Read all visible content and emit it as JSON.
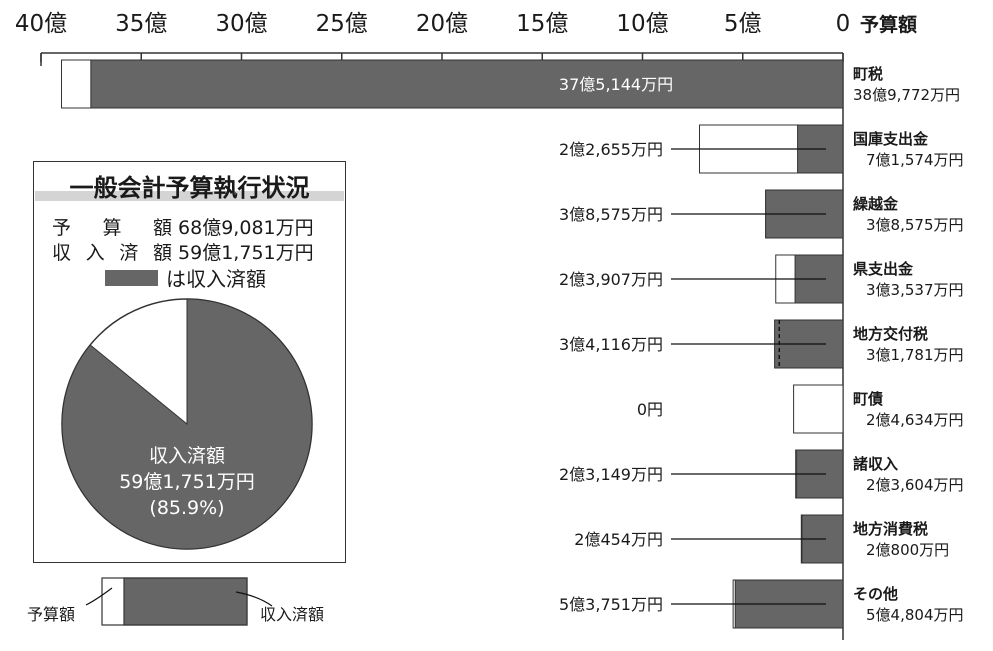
{
  "chart_data": {
    "type": "bar",
    "orientation": "horizontal",
    "x_axis": {
      "min": 0,
      "max": 40,
      "reversed": true,
      "ticks": [
        40,
        35,
        30,
        25,
        20,
        15,
        10,
        5,
        0
      ],
      "tick_labels": [
        "40億",
        "35億",
        "30億",
        "25億",
        "20億",
        "15億",
        "10億",
        "5億",
        "0"
      ],
      "unit_label": "予算額"
    },
    "categories": [
      {
        "name": "町税",
        "budget_label": "38億9,772万円",
        "received_label": "37億5,144万円",
        "budget": 38.9772,
        "received": 37.5144
      },
      {
        "name": "国庫支出金",
        "budget_label": "7億1,574万円",
        "received_label": "2億2,655万円",
        "budget": 7.1574,
        "received": 2.2655
      },
      {
        "name": "繰越金",
        "budget_label": "3億8,575万円",
        "received_label": "3億8,575万円",
        "budget": 3.8575,
        "received": 3.8575
      },
      {
        "name": "県支出金",
        "budget_label": "3億3,537万円",
        "received_label": "2億3,907万円",
        "budget": 3.3537,
        "received": 2.3907
      },
      {
        "name": "地方交付税",
        "budget_label": "3億1,781万円",
        "received_label": "3億4,116万円",
        "budget": 3.1781,
        "received": 3.4116
      },
      {
        "name": "町債",
        "budget_label": "2億4,634万円",
        "received_label": "0円",
        "budget": 2.4634,
        "received": 0
      },
      {
        "name": "諸収入",
        "budget_label": "2億3,604万円",
        "received_label": "2億3,149万円",
        "budget": 2.3604,
        "received": 2.3149
      },
      {
        "name": "地方消費税",
        "budget_label": "2億800万円",
        "received_label": "2億454万円",
        "budget": 2.08,
        "received": 2.0454
      },
      {
        "name": "その他",
        "budget_label": "5億4,804万円",
        "received_label": "5億3,751万円",
        "budget": 5.4804,
        "received": 5.3751
      }
    ],
    "summary": {
      "title": "一般会計予算執行状況",
      "budget_label": "予 算 額",
      "budget_value": "68億9,081万円",
      "received_label": "収入済額",
      "received_value": "59億1,751万円",
      "legend_text": "は収入済額"
    },
    "pie": {
      "received_fraction": 0.859,
      "label_line1": "収入済額",
      "label_line2": "59億1,751万円",
      "label_line3": "(85.9%)"
    },
    "key": {
      "budget_label": "予算額",
      "received_label": "収入済額"
    },
    "colors": {
      "received": "#666666",
      "budget": "#ffffff",
      "outline": "#333333"
    }
  }
}
